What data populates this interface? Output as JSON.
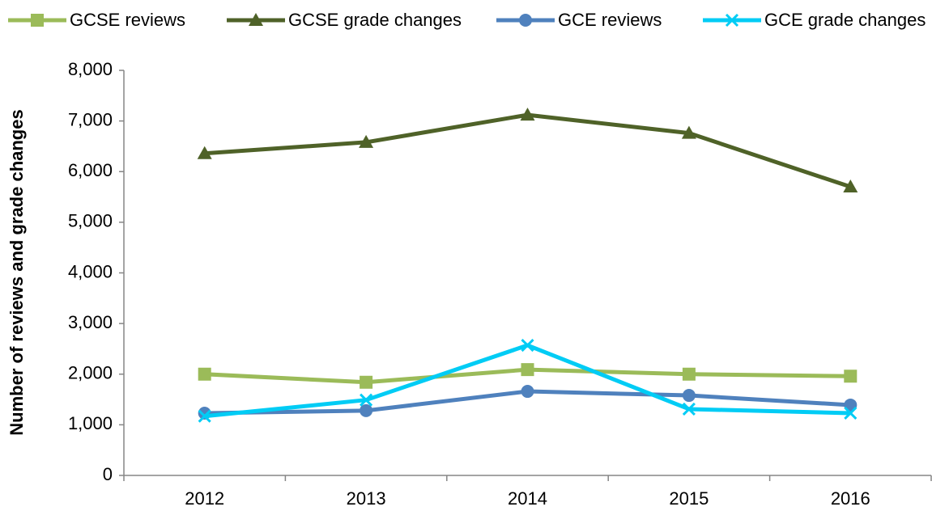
{
  "chart_data": {
    "type": "line",
    "y_axis_label": "Number of reviews and grade changes",
    "categories": [
      "2012",
      "2013",
      "2014",
      "2015",
      "2016"
    ],
    "series": [
      {
        "name": "GCSE reviews",
        "color": "#9bbb59",
        "marker": "square",
        "values": [
          2000,
          1840,
          2090,
          2000,
          1960
        ]
      },
      {
        "name": "GCSE grade changes",
        "color": "#4f6228",
        "marker": "triangle",
        "values": [
          6360,
          6580,
          7120,
          6760,
          5700
        ]
      },
      {
        "name": "GCE reviews",
        "color": "#4f81bd",
        "marker": "circle",
        "values": [
          1230,
          1280,
          1660,
          1580,
          1390
        ]
      },
      {
        "name": "GCE grade changes",
        "color": "#00ccf5",
        "marker": "x",
        "values": [
          1170,
          1490,
          2570,
          1310,
          1230
        ]
      }
    ],
    "ylim": [
      0,
      8000
    ],
    "yticks": [
      {
        "value": 0,
        "label": "0"
      },
      {
        "value": 1000,
        "label": "1,000"
      },
      {
        "value": 2000,
        "label": "2,000"
      },
      {
        "value": 3000,
        "label": "3,000"
      },
      {
        "value": 4000,
        "label": "4,000"
      },
      {
        "value": 5000,
        "label": "5,000"
      },
      {
        "value": 6000,
        "label": "6,000"
      },
      {
        "value": 7000,
        "label": "7,000"
      },
      {
        "value": 8000,
        "label": "8,000"
      }
    ],
    "legend": "top"
  }
}
